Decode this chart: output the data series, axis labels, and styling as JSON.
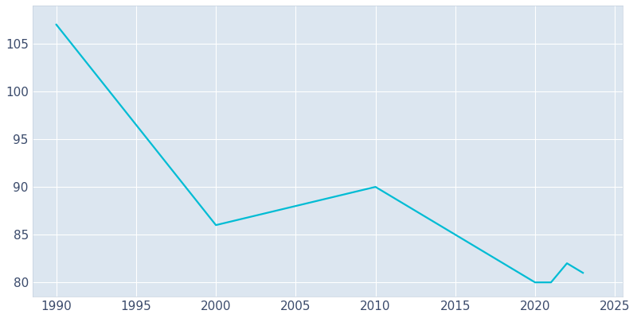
{
  "x": [
    1990,
    2000,
    2005,
    2010,
    2020,
    2021,
    2022,
    2023
  ],
  "y": [
    107,
    86,
    88,
    90,
    80,
    80,
    82,
    81
  ],
  "line_color": "#00bcd4",
  "bg_color": "#dce6f0",
  "outer_bg": "#ffffff",
  "grid_color": "#ffffff",
  "spine_color": "#c5d0de",
  "tick_color": "#3a4a6b",
  "xlim": [
    1988.5,
    2025.5
  ],
  "ylim": [
    78.5,
    109
  ],
  "xticks": [
    1990,
    1995,
    2000,
    2005,
    2010,
    2015,
    2020,
    2025
  ],
  "yticks": [
    80,
    85,
    90,
    95,
    100,
    105
  ],
  "linewidth": 1.6,
  "tick_fontsize": 11
}
